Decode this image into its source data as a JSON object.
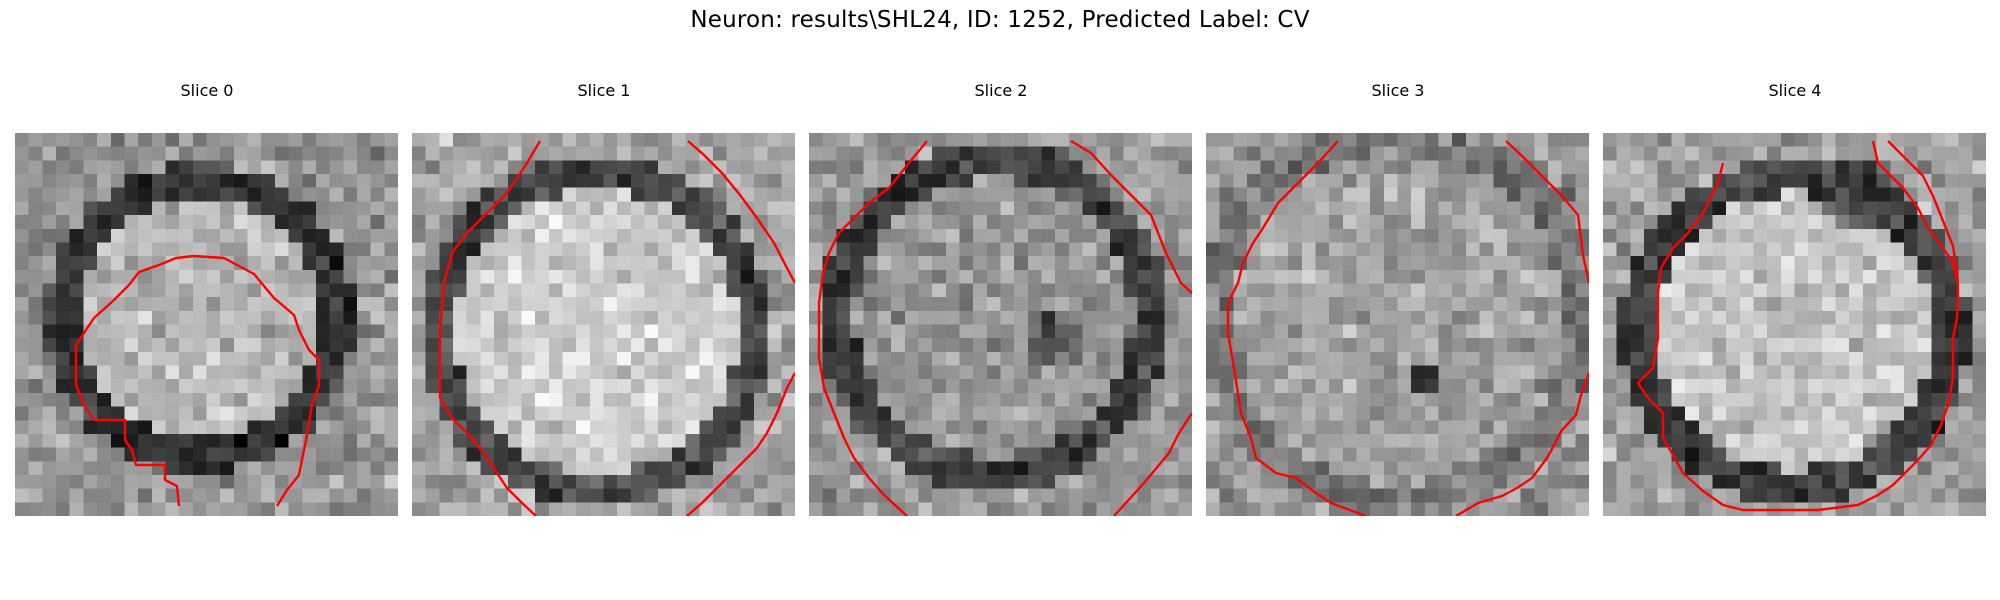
{
  "figure": {
    "title": "Neuron: results\\SHL24, ID: 1252, Predicted Label: CV"
  },
  "colors": {
    "contour": "#ff0000",
    "background": "#ffffff"
  },
  "panels": [
    {
      "title": "Slice 0"
    },
    {
      "title": "Slice 1"
    },
    {
      "title": "Slice 2"
    },
    {
      "title": "Slice 3"
    },
    {
      "title": "Slice 4"
    }
  ]
}
